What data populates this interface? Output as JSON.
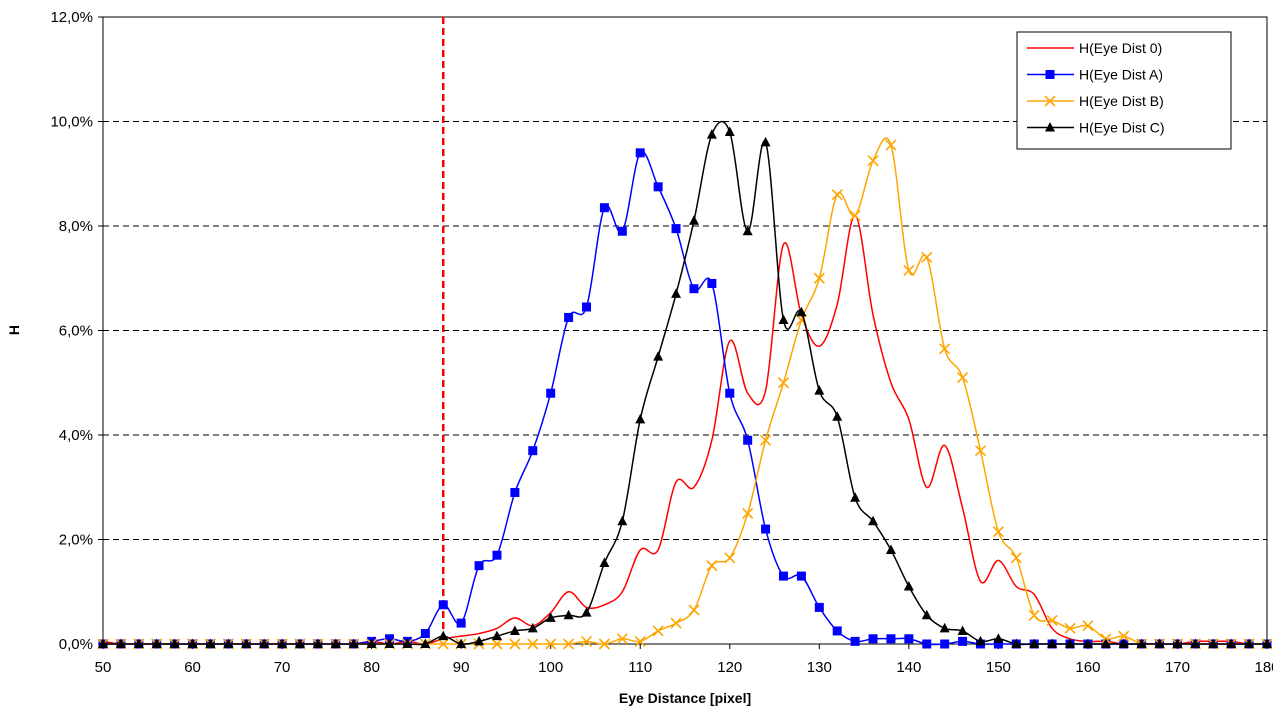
{
  "chart_data": {
    "type": "line",
    "title": "",
    "xlabel": "Eye Distance [pixel]",
    "ylabel": "H",
    "xlim": [
      50,
      180
    ],
    "ylim": [
      0,
      12
    ],
    "x_ticks": [
      50,
      60,
      70,
      80,
      90,
      100,
      110,
      120,
      130,
      140,
      150,
      160,
      170,
      180
    ],
    "y_ticks": [
      0,
      2,
      4,
      6,
      8,
      10,
      12
    ],
    "y_tick_labels": [
      "0,0%",
      "2,0%",
      "4,0%",
      "6,0%",
      "8,0%",
      "10,0%",
      "12,0%"
    ],
    "x_tick_labels": [
      "50",
      "60",
      "70",
      "80",
      "90",
      "100",
      "110",
      "120",
      "130",
      "140",
      "150",
      "160",
      "170",
      "180"
    ],
    "grid": "horizontal dashed",
    "legend_position": "top-right",
    "reference_line": {
      "x": 88,
      "color": "#ff0000",
      "style": "dashed"
    },
    "x": [
      50,
      52,
      54,
      56,
      58,
      60,
      62,
      64,
      66,
      68,
      70,
      72,
      74,
      76,
      78,
      80,
      82,
      84,
      86,
      88,
      90,
      92,
      94,
      96,
      98,
      100,
      102,
      104,
      106,
      108,
      110,
      112,
      114,
      116,
      118,
      120,
      122,
      124,
      126,
      128,
      130,
      132,
      134,
      136,
      138,
      140,
      142,
      144,
      146,
      148,
      150,
      152,
      154,
      156,
      158,
      160,
      162,
      164,
      166,
      168,
      170,
      172,
      174,
      176,
      178,
      180
    ],
    "series": [
      {
        "name": "H(Eye Dist 0)",
        "color": "#ff0000",
        "marker": "none",
        "values": [
          0.05,
          0,
          0,
          0,
          0,
          0,
          0,
          0,
          0,
          0,
          0,
          0,
          0,
          0,
          0,
          0.05,
          0,
          0.05,
          0,
          0.1,
          0.15,
          0.2,
          0.3,
          0.5,
          0.35,
          0.6,
          1.0,
          0.7,
          0.75,
          1.0,
          1.8,
          1.8,
          3.1,
          3.0,
          3.9,
          5.8,
          4.8,
          4.85,
          7.65,
          6.3,
          5.7,
          6.5,
          8.2,
          6.3,
          5.0,
          4.3,
          3.0,
          3.8,
          2.6,
          1.2,
          1.6,
          1.1,
          0.95,
          0.3,
          0.1,
          0.05,
          0.05,
          0,
          0,
          0,
          0,
          0.05,
          0.05,
          0.05,
          0,
          0
        ]
      },
      {
        "name": "H(Eye Dist A)",
        "color": "#0000ff",
        "marker": "square",
        "values": [
          0,
          0,
          0,
          0,
          0,
          0,
          0,
          0,
          0,
          0,
          0,
          0,
          0,
          0,
          0,
          0.05,
          0.1,
          0.05,
          0.2,
          0.75,
          0.4,
          1.5,
          1.7,
          2.9,
          3.7,
          4.8,
          6.25,
          6.45,
          8.35,
          7.9,
          9.4,
          8.75,
          7.95,
          6.8,
          6.9,
          4.8,
          3.9,
          2.2,
          1.3,
          1.3,
          0.7,
          0.25,
          0.05,
          0.1,
          0.1,
          0.1,
          0,
          0,
          0.05,
          0,
          0,
          0,
          0,
          0,
          0,
          0,
          0,
          0,
          0,
          0,
          0,
          0,
          0,
          0,
          0,
          0
        ]
      },
      {
        "name": "H(Eye Dist B)",
        "color": "#ffa500",
        "marker": "x",
        "values": [
          0,
          0,
          0,
          0,
          0,
          0,
          0,
          0,
          0,
          0,
          0,
          0,
          0,
          0,
          0,
          0,
          0,
          0,
          0,
          0,
          0,
          0,
          0,
          0,
          0,
          0,
          0,
          0.05,
          0,
          0.1,
          0.05,
          0.25,
          0.4,
          0.65,
          1.5,
          1.65,
          2.5,
          3.9,
          5.0,
          6.2,
          7.0,
          8.6,
          8.2,
          9.25,
          9.55,
          7.15,
          7.4,
          5.65,
          5.1,
          3.7,
          2.15,
          1.65,
          0.55,
          0.45,
          0.3,
          0.35,
          0.1,
          0.15,
          0,
          0,
          0,
          0,
          0,
          0,
          0,
          0
        ]
      },
      {
        "name": "H(Eye Dist C)",
        "color": "#000000",
        "marker": "triangle",
        "values": [
          0,
          0,
          0,
          0,
          0,
          0,
          0,
          0,
          0,
          0,
          0,
          0,
          0,
          0,
          0,
          0,
          0,
          0,
          0,
          0.15,
          0,
          0.05,
          0.15,
          0.25,
          0.3,
          0.5,
          0.55,
          0.6,
          1.55,
          2.35,
          4.3,
          5.5,
          6.7,
          8.1,
          9.75,
          9.8,
          7.9,
          9.6,
          6.2,
          6.35,
          4.85,
          4.35,
          2.8,
          2.35,
          1.8,
          1.1,
          0.55,
          0.3,
          0.25,
          0.05,
          0.1,
          0,
          0,
          0,
          0,
          0,
          0,
          0,
          0,
          0,
          0,
          0,
          0,
          0,
          0,
          0
        ]
      }
    ]
  }
}
